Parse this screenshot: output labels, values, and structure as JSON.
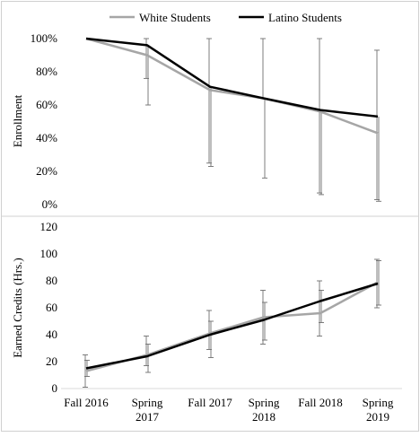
{
  "chart_data": [
    {
      "type": "line",
      "ylabel": "Enrollment",
      "ylim": [
        0,
        100
      ],
      "yticks": [
        0,
        20,
        40,
        60,
        80,
        100
      ],
      "ytick_labels": [
        "0%",
        "20%",
        "40%",
        "60%",
        "80%",
        "100%"
      ],
      "grid": false,
      "legend": "top",
      "series": [
        {
          "name": "White Students",
          "color": "#a6a6a6",
          "values": [
            100,
            90,
            69,
            64,
            56,
            43
          ],
          "error_low": [
            null,
            76,
            25,
            null,
            7,
            3
          ],
          "error_high": [
            null,
            100,
            100,
            100,
            100,
            93
          ]
        },
        {
          "name": "Latino Students",
          "color": "#000000",
          "values": [
            100,
            96,
            71,
            64,
            57,
            53
          ],
          "error_low": [
            null,
            60,
            23,
            16,
            6,
            2
          ],
          "error_high": [
            null,
            null,
            null,
            null,
            null,
            null
          ]
        }
      ]
    },
    {
      "type": "line",
      "ylabel": "Earned Credits (Hrs.)",
      "ylim": [
        0,
        120
      ],
      "yticks": [
        0,
        20,
        40,
        60,
        80,
        100,
        120
      ],
      "ytick_labels": [
        "0",
        "20",
        "40",
        "60",
        "80",
        "100",
        "120"
      ],
      "grid": false,
      "categories": [
        [
          "Fall 2016"
        ],
        [
          "Spring",
          "2017"
        ],
        [
          "Fall 2017"
        ],
        [
          "Spring",
          "2018"
        ],
        [
          "Fall 2018"
        ],
        [
          "Spring",
          "2019"
        ]
      ],
      "series": [
        {
          "name": "White Students",
          "color": "#a6a6a6",
          "values": [
            13,
            25,
            41,
            53,
            56,
            79
          ],
          "error_low": [
            1,
            17,
            29,
            33,
            39,
            60
          ],
          "error_high": [
            25,
            39,
            58,
            73,
            80,
            96
          ]
        },
        {
          "name": "Latino Students",
          "color": "#000000",
          "values": [
            15,
            24,
            40,
            51,
            65,
            78
          ],
          "error_low": [
            9,
            12,
            23,
            36,
            49,
            62
          ],
          "error_high": [
            21,
            33,
            50,
            64,
            73,
            95
          ]
        }
      ]
    }
  ]
}
